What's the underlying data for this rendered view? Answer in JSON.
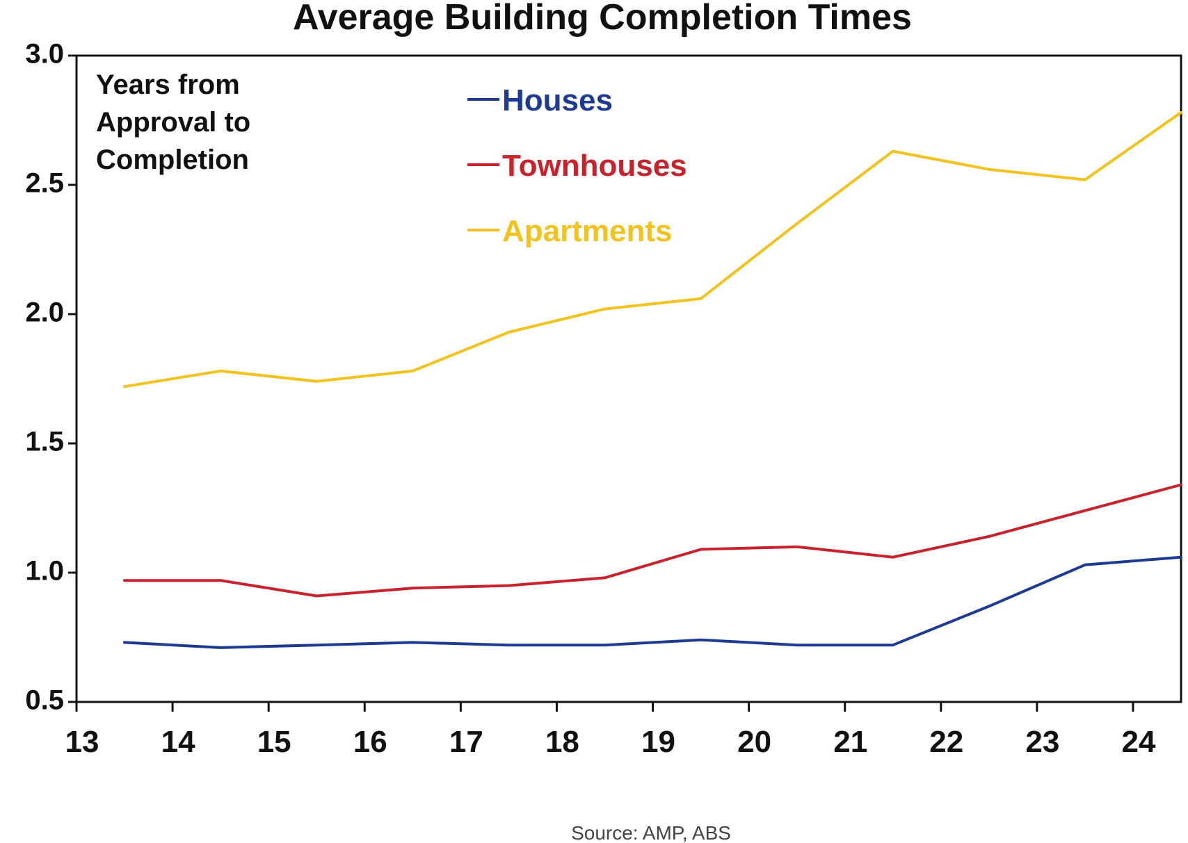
{
  "chart_data": {
    "type": "line",
    "title": "Average Building Completion Times",
    "annotation": [
      "Years from",
      "Approval to",
      "Completion"
    ],
    "xlabel": "",
    "ylabel": "",
    "x_ticks": [
      "13",
      "14",
      "15",
      "16",
      "17",
      "18",
      "19",
      "20",
      "21",
      "22",
      "23",
      "24"
    ],
    "y_ticks": [
      "0.5",
      "1.0",
      "1.5",
      "2.0",
      "2.5",
      "3.0"
    ],
    "xlim": [
      13,
      24.5
    ],
    "ylim": [
      0.5,
      3.0
    ],
    "x": [
      13.5,
      14.5,
      15.5,
      16.5,
      17.5,
      18.5,
      19.5,
      20.5,
      21.5,
      22.5,
      23.5,
      24.5
    ],
    "series": [
      {
        "name": "Houses",
        "color": "#1f3a93",
        "values": [
          0.73,
          0.71,
          0.72,
          0.73,
          0.72,
          0.72,
          0.74,
          0.72,
          0.72,
          0.87,
          1.03,
          1.06
        ]
      },
      {
        "name": "Townhouses",
        "color": "#c8232c",
        "values": [
          0.97,
          0.97,
          0.91,
          0.94,
          0.95,
          0.98,
          1.09,
          1.1,
          1.06,
          1.14,
          1.24,
          1.34
        ]
      },
      {
        "name": "Apartments",
        "color": "#f2c21f",
        "values": [
          1.72,
          1.78,
          1.74,
          1.78,
          1.93,
          2.02,
          2.06,
          2.35,
          2.63,
          2.56,
          2.52,
          2.78
        ]
      }
    ],
    "legend_position": "top-center",
    "grid": false
  },
  "source": "Source:  AMP,  ABS"
}
